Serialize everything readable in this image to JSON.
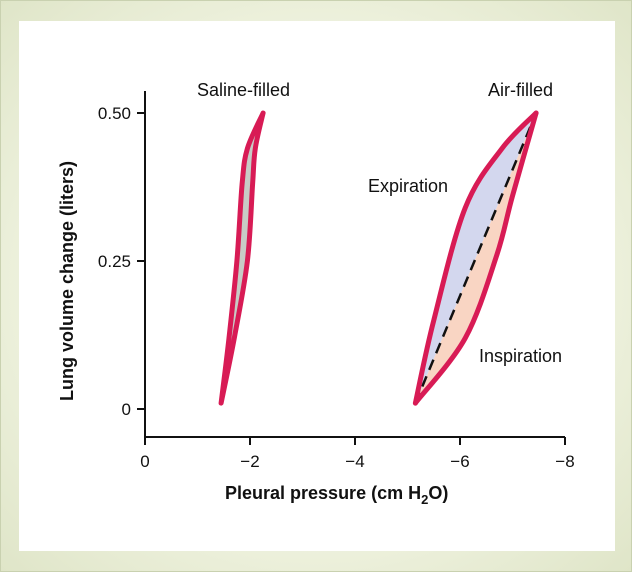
{
  "chart_data": {
    "type": "line",
    "xlabel": "Pleural pressure (cm H",
    "xlabel_subscript": "2",
    "xlabel_suffix": "O)",
    "ylabel": "Lung volume change (liters)",
    "xlim": [
      0,
      -8
    ],
    "ylim": [
      0,
      0.5
    ],
    "x_ticks": [
      0,
      -2,
      -4,
      -6,
      -8
    ],
    "x_tick_labels": [
      "0",
      "−2",
      "−4",
      "−6",
      "−8"
    ],
    "y_ticks": [
      0,
      0.25,
      0.5
    ],
    "y_tick_labels": [
      "0",
      "0.25",
      "0.50"
    ],
    "annotations": {
      "saline": "Saline-filled",
      "air": "Air-filled",
      "expiration": "Expiration",
      "inspiration": "Inspiration"
    },
    "colors": {
      "loop_stroke": "#d81b55",
      "saline_fill": "#c8cbc6",
      "expiration_fill": "#d3d7ee",
      "inspiration_fill": "#f9d5c3",
      "dash": "#111111"
    },
    "series": [
      {
        "name": "Saline-filled",
        "expiration": [
          [
            -1.45,
            0.01
          ],
          [
            -1.6,
            0.12
          ],
          [
            -1.75,
            0.25
          ],
          [
            -1.85,
            0.38
          ],
          [
            -1.95,
            0.44
          ],
          [
            -2.25,
            0.5
          ]
        ],
        "inspiration": [
          [
            -1.45,
            0.01
          ],
          [
            -1.7,
            0.12
          ],
          [
            -1.95,
            0.25
          ],
          [
            -2.05,
            0.38
          ],
          [
            -2.1,
            0.44
          ],
          [
            -2.25,
            0.5
          ]
        ]
      },
      {
        "name": "Air-filled",
        "expiration": [
          [
            -5.15,
            0.01
          ],
          [
            -5.5,
            0.15
          ],
          [
            -6.1,
            0.34
          ],
          [
            -6.8,
            0.44
          ],
          [
            -7.45,
            0.5
          ]
        ],
        "inspiration": [
          [
            -5.15,
            0.01
          ],
          [
            -6.1,
            0.12
          ],
          [
            -6.7,
            0.26
          ],
          [
            -7.0,
            0.36
          ],
          [
            -7.45,
            0.5
          ]
        ]
      }
    ],
    "dashed_line": [
      [
        -5.15,
        0.01
      ],
      [
        -7.45,
        0.5
      ]
    ]
  }
}
